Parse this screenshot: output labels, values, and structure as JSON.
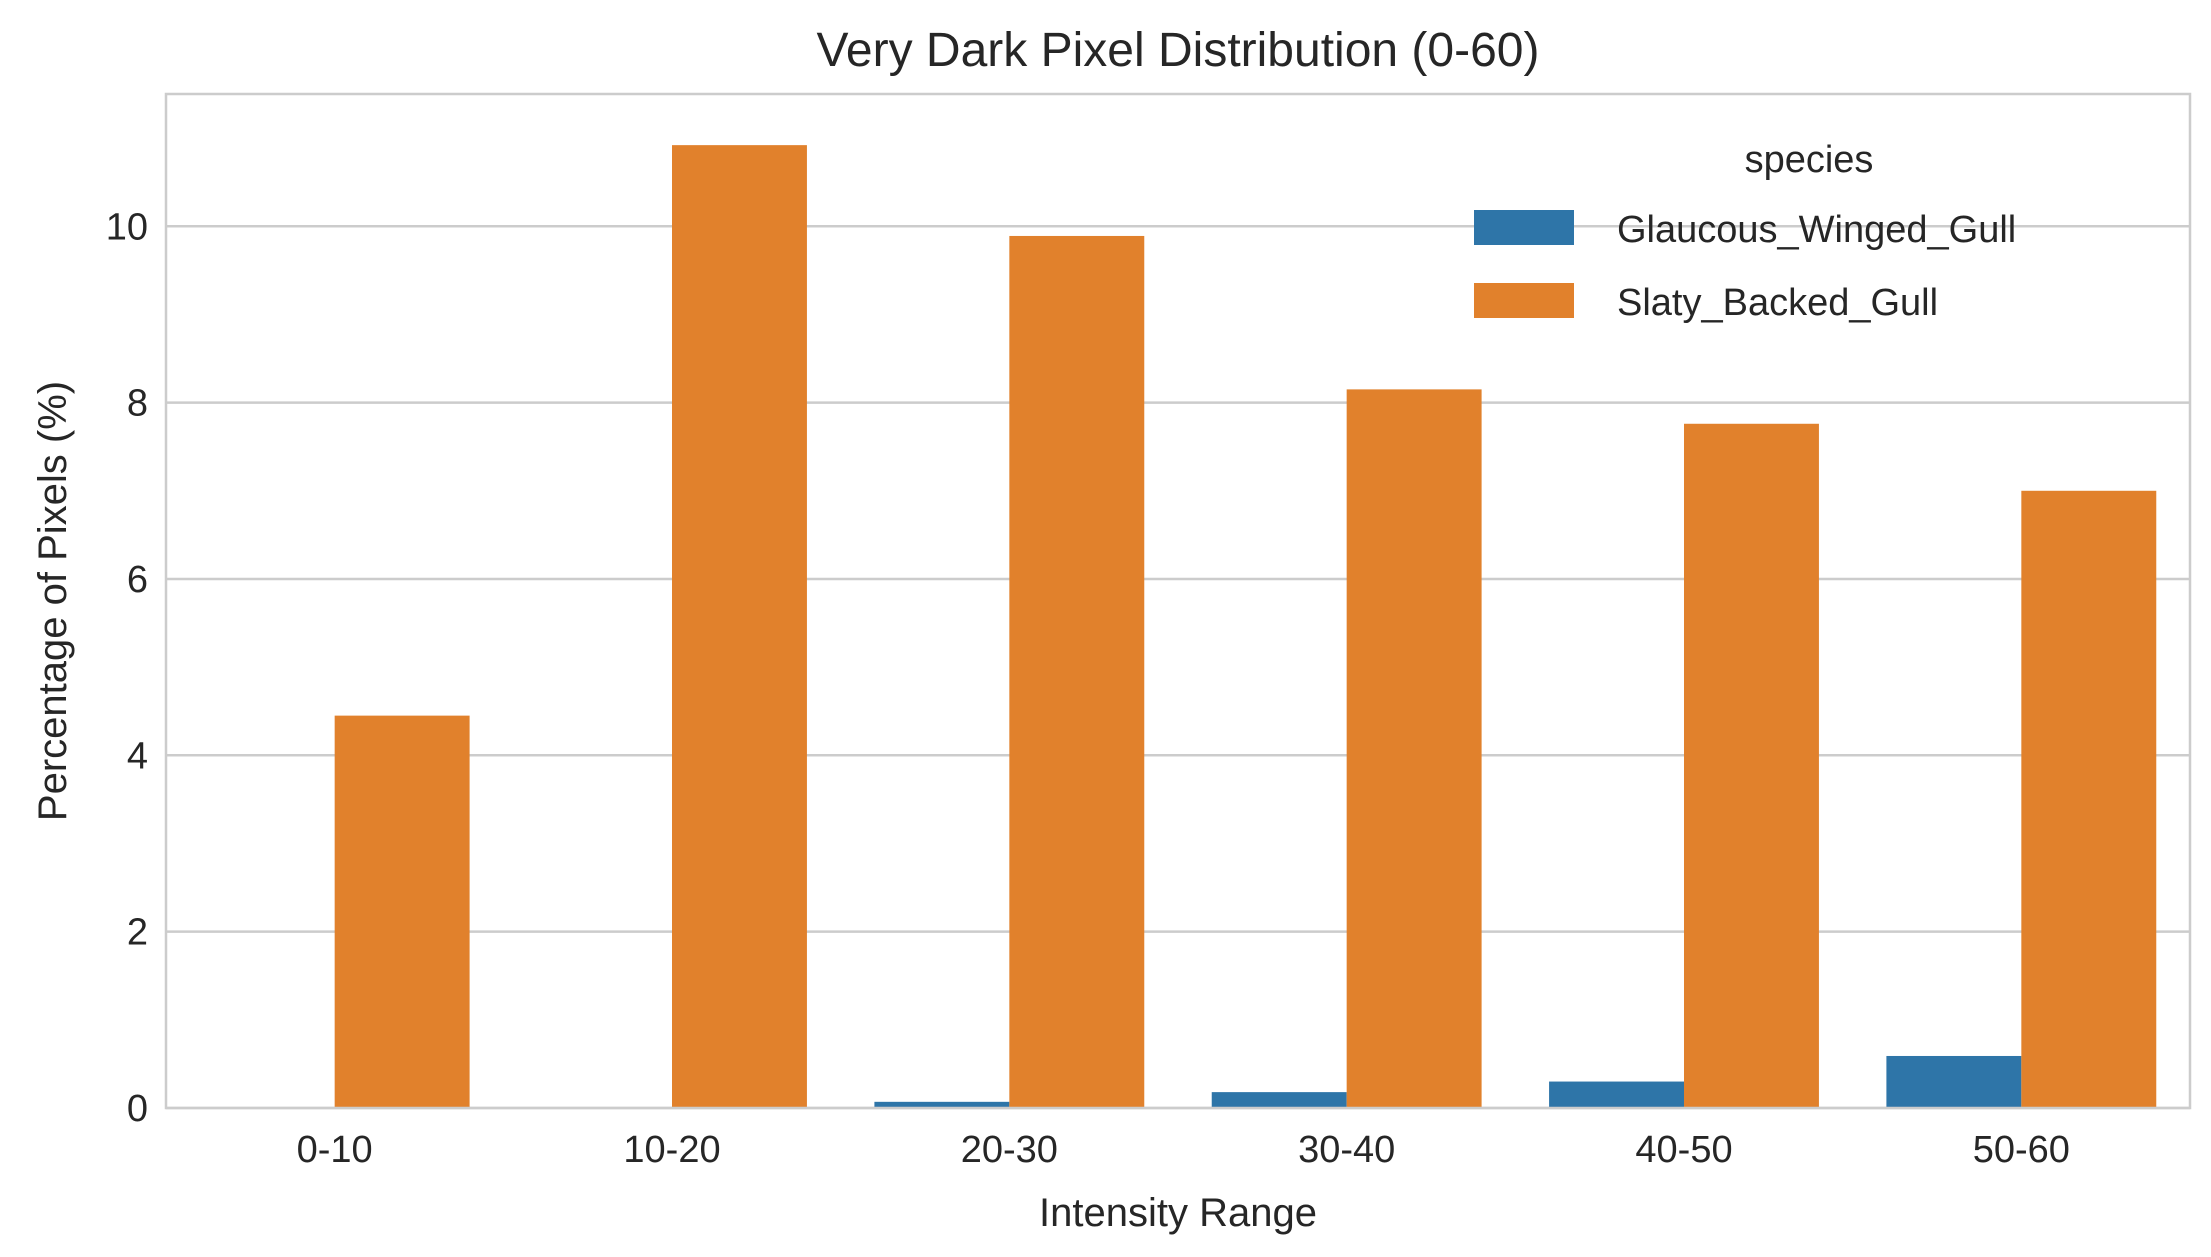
{
  "chart_data": {
    "type": "bar",
    "title": "Very Dark Pixel Distribution (0-60)",
    "xlabel": "Intensity Range",
    "ylabel": "Percentage of Pixels (%)",
    "categories": [
      "0-10",
      "10-20",
      "20-30",
      "30-40",
      "40-50",
      "50-60"
    ],
    "series": [
      {
        "name": "Glaucous_Winged_Gull",
        "color": "#2e75a8",
        "values": [
          0.0,
          0.0,
          0.07,
          0.18,
          0.3,
          0.59
        ]
      },
      {
        "name": "Slaty_Backed_Gull",
        "color": "#e1812c",
        "values": [
          4.45,
          10.92,
          9.89,
          8.15,
          7.76,
          7.0
        ]
      }
    ],
    "ylim": [
      0,
      11.5
    ],
    "yticks": [
      0,
      2,
      4,
      6,
      8,
      10
    ],
    "grid": true,
    "legend": {
      "title": "species",
      "position": "top-right"
    }
  }
}
